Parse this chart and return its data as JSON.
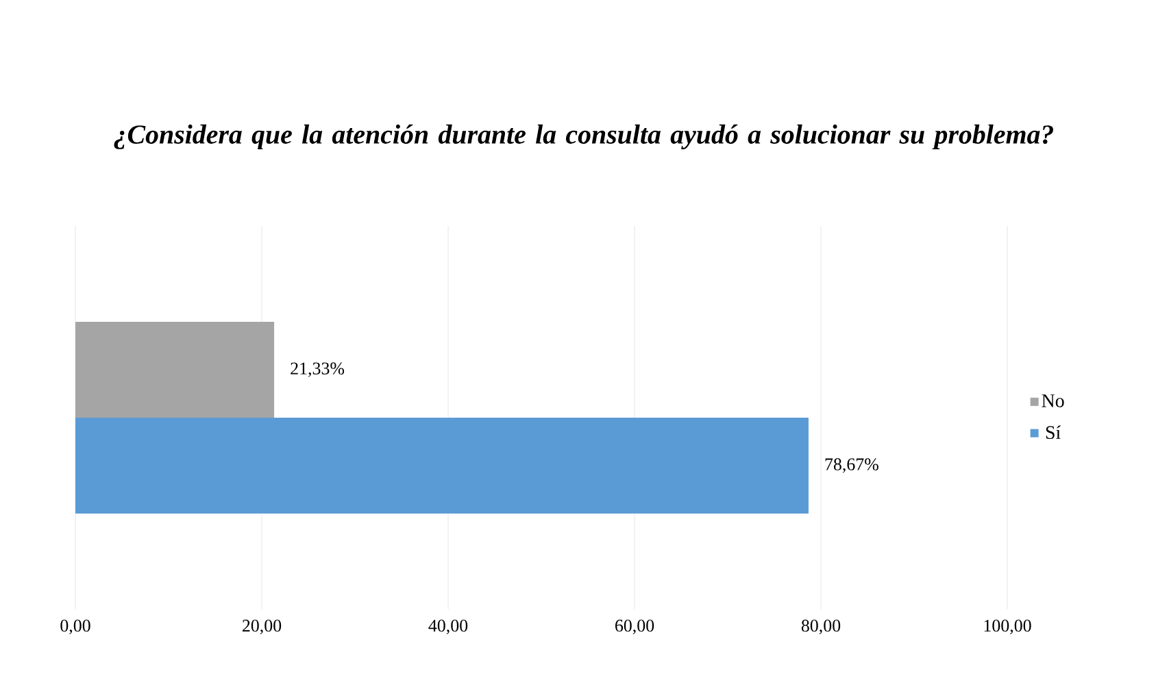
{
  "chart_data": {
    "type": "bar",
    "orientation": "horizontal",
    "title": "¿Considera que la atención durante la consulta ayudó a solucionar su problema?",
    "categories": [
      null
    ],
    "series": [
      {
        "name": "No",
        "color": "#a5a5a5",
        "values": [
          21.33
        ],
        "value_labels": [
          "21,33%"
        ]
      },
      {
        "name": "Sí",
        "color": "#5b9bd5",
        "values": [
          78.67
        ],
        "value_labels": [
          "78,67%"
        ]
      }
    ],
    "xlim": [
      0,
      100
    ],
    "xticks": [
      {
        "value": 0,
        "label": "0,00"
      },
      {
        "value": 20,
        "label": "20,00"
      },
      {
        "value": 40,
        "label": "40,00"
      },
      {
        "value": 60,
        "label": "60,00"
      },
      {
        "value": 80,
        "label": "80,00"
      },
      {
        "value": 100,
        "label": "100,00"
      }
    ],
    "grid": "x",
    "legend": "right"
  }
}
